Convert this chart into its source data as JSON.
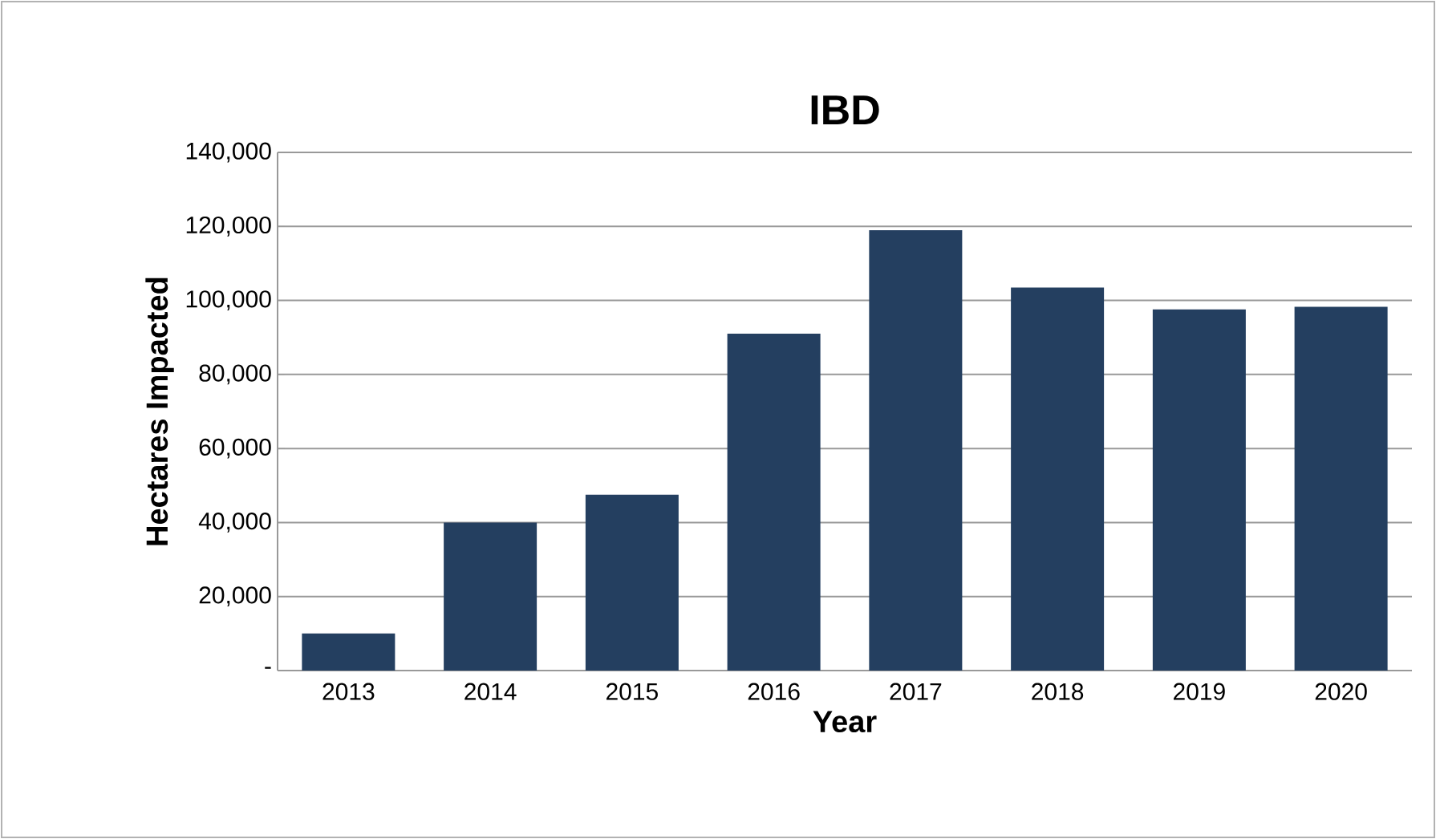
{
  "chart_data": {
    "type": "bar",
    "title": "IBD",
    "xlabel": "Year",
    "ylabel": "Hectares Impacted",
    "categories": [
      "2013",
      "2014",
      "2015",
      "2016",
      "2017",
      "2018",
      "2019",
      "2020"
    ],
    "values": [
      10000,
      40000,
      47500,
      91000,
      119000,
      103500,
      97600,
      98300
    ],
    "color": "#243f60",
    "ylim": [
      0,
      140000
    ],
    "yticks": [
      {
        "value": 0,
        "label": "-"
      },
      {
        "value": 20000,
        "label": "20,000"
      },
      {
        "value": 40000,
        "label": "40,000"
      },
      {
        "value": 60000,
        "label": "60,000"
      },
      {
        "value": 80000,
        "label": "80,000"
      },
      {
        "value": 100000,
        "label": "100,000"
      },
      {
        "value": 120000,
        "label": "120,000"
      },
      {
        "value": 140000,
        "label": "140,000"
      }
    ],
    "grid": "y"
  }
}
